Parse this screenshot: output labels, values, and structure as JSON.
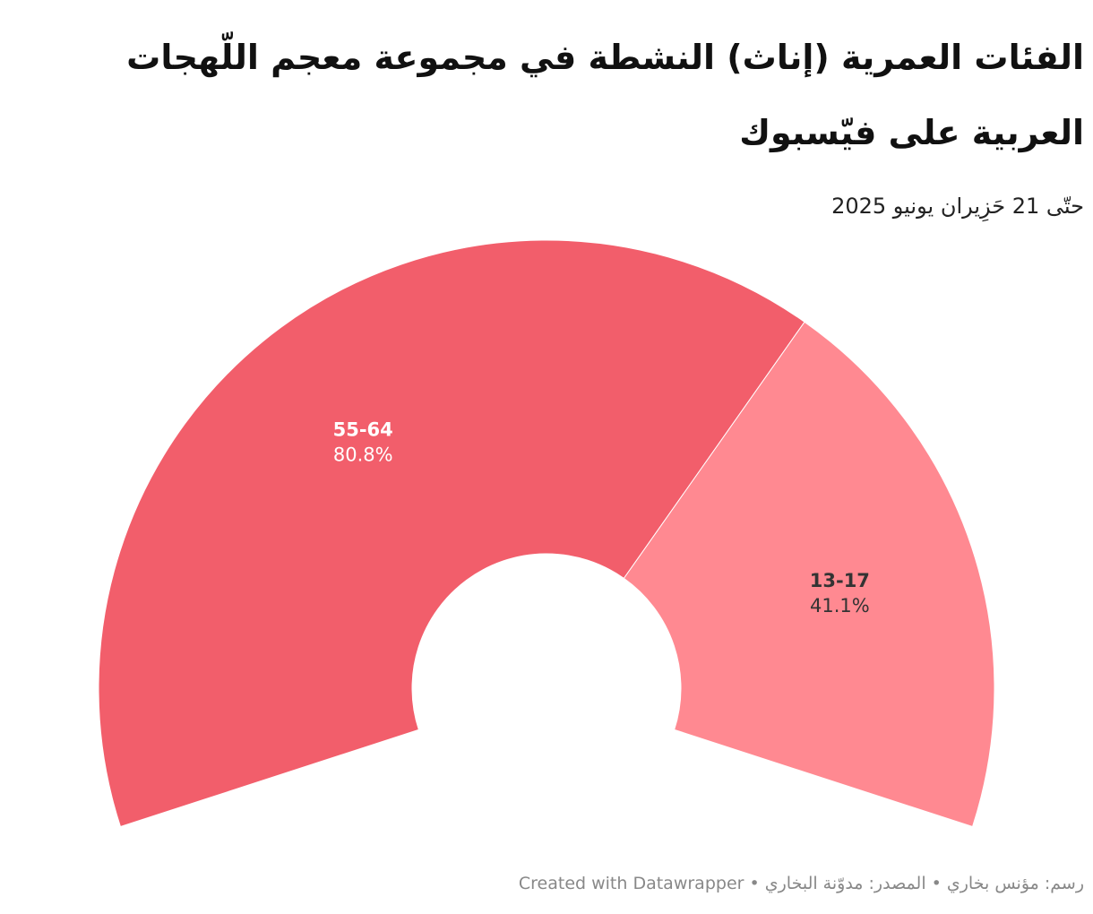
{
  "chart_data": {
    "type": "pie",
    "subtype": "half-donut",
    "title": "الفئات العمرية (إناث) النشطة في مجموعة معجم اللّهجات العربية على فيّسبوك",
    "subtitle": "حتّى 21 حَزِيران يونيو 2025",
    "slices": [
      {
        "label": "55-64",
        "value": 80.8,
        "display": "80.8%",
        "color": "#f25e6b",
        "text_color": "#ffffff"
      },
      {
        "label": "13-17",
        "value": 41.1,
        "display": "41.1%",
        "color": "#ff8991",
        "text_color": "#333333"
      }
    ]
  },
  "footer": {
    "text": "رسم: مؤنس بخاري • المصدر: مدوّنة البخاري • Created with Datawrapper"
  },
  "colors": {
    "background": "#ffffff",
    "title": "#111111",
    "footer": "#888888"
  }
}
